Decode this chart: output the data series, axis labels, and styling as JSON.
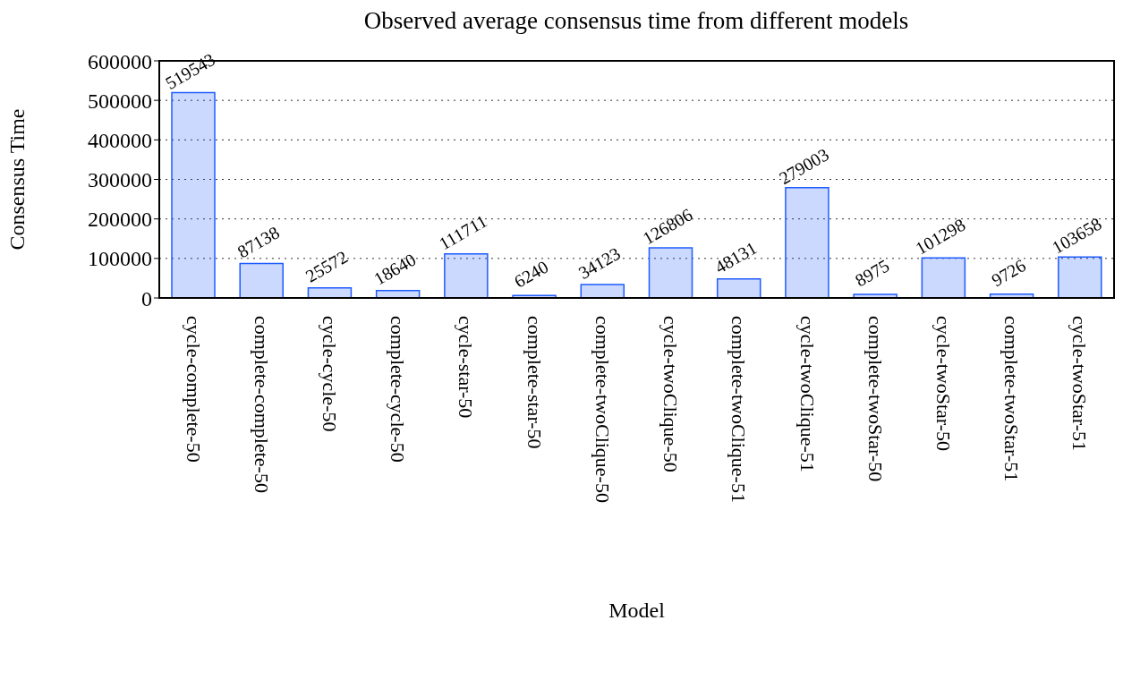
{
  "chart_data": {
    "type": "bar",
    "title": "Observed average consensus time from different models",
    "xlabel": "Model",
    "ylabel": "Consensus Time",
    "categories": [
      "cycle-complete-50",
      "complete-complete-50",
      "cycle-cycle-50",
      "complete-cycle-50",
      "cycle-star-50",
      "complete-star-50",
      "complete-twoClique-50",
      "cycle-twoClique-50",
      "complete-twoClique-51",
      "cycle-twoClique-51",
      "complete-twoStar-50",
      "cycle-twoStar-50",
      "complete-twoStar-51",
      "cycle-twoStar-51"
    ],
    "values": [
      519543,
      87138,
      25572,
      18640,
      111711,
      6240,
      34123,
      126806,
      48131,
      279003,
      8975,
      101298,
      9726,
      103658
    ],
    "color": "#1f5cff",
    "ylim": [
      0,
      600000
    ],
    "yticks": [
      0,
      100000,
      200000,
      300000,
      400000,
      500000,
      600000
    ],
    "grid": "y",
    "data_labels": true
  }
}
